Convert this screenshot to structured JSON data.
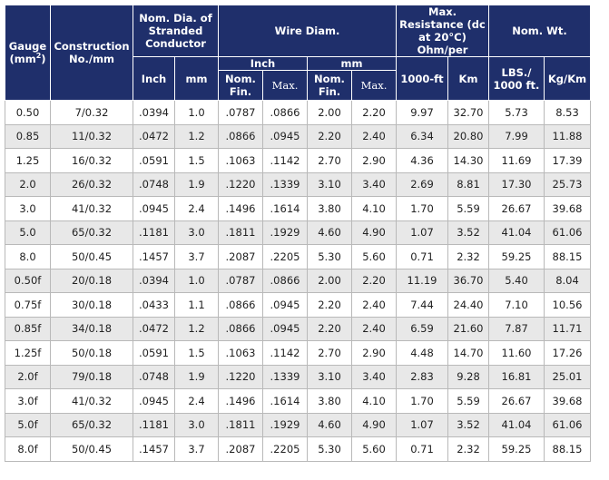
{
  "header": {
    "gauge": "Gauge",
    "gauge_unit_base": "(mm",
    "gauge_unit_sup": "2",
    "gauge_unit_close": ")",
    "construction": "Construction No./mm",
    "nom_dia": "Nom. Dia. of Stranded Conductor",
    "wire_diam": "Wire Diam.",
    "max_resistance": "Max. Resistance (dc at 20°C) Ohm/per",
    "nom_wt": "Nom. Wt.",
    "inch": "Inch",
    "mm": "mm",
    "inch_sub": "Inch",
    "mm_sub": "mm",
    "nom_fin": "Nom. Fin.",
    "max": "Max.",
    "nom_fin_mm": "Nom. Fin.",
    "max_mm": "Max.",
    "ft1000": "1000-ft",
    "km": "Km",
    "lbs": "LBS./ 1000 ft.",
    "kgkm": "Kg/Km"
  },
  "rows": [
    [
      "0.50",
      "7/0.32",
      ".0394",
      "1.0",
      ".0787",
      ".0866",
      "2.00",
      "2.20",
      "9.97",
      "32.70",
      "5.73",
      "8.53"
    ],
    [
      "0.85",
      "11/0.32",
      ".0472",
      "1.2",
      ".0866",
      ".0945",
      "2.20",
      "2.40",
      "6.34",
      "20.80",
      "7.99",
      "11.88"
    ],
    [
      "1.25",
      "16/0.32",
      ".0591",
      "1.5",
      ".1063",
      ".1142",
      "2.70",
      "2.90",
      "4.36",
      "14.30",
      "11.69",
      "17.39"
    ],
    [
      "2.0",
      "26/0.32",
      ".0748",
      "1.9",
      ".1220",
      ".1339",
      "3.10",
      "3.40",
      "2.69",
      "8.81",
      "17.30",
      "25.73"
    ],
    [
      "3.0",
      "41/0.32",
      ".0945",
      "2.4",
      ".1496",
      ".1614",
      "3.80",
      "4.10",
      "1.70",
      "5.59",
      "26.67",
      "39.68"
    ],
    [
      "5.0",
      "65/0.32",
      ".1181",
      "3.0",
      ".1811",
      ".1929",
      "4.60",
      "4.90",
      "1.07",
      "3.52",
      "41.04",
      "61.06"
    ],
    [
      "8.0",
      "50/0.45",
      ".1457",
      "3.7",
      ".2087",
      ".2205",
      "5.30",
      "5.60",
      "0.71",
      "2.32",
      "59.25",
      "88.15"
    ],
    [
      "0.50f",
      "20/0.18",
      ".0394",
      "1.0",
      ".0787",
      ".0866",
      "2.00",
      "2.20",
      "11.19",
      "36.70",
      "5.40",
      "8.04"
    ],
    [
      "0.75f",
      "30/0.18",
      ".0433",
      "1.1",
      ".0866",
      ".0945",
      "2.20",
      "2.40",
      "7.44",
      "24.40",
      "7.10",
      "10.56"
    ],
    [
      "0.85f",
      "34/0.18",
      ".0472",
      "1.2",
      ".0866",
      ".0945",
      "2.20",
      "2.40",
      "6.59",
      "21.60",
      "7.87",
      "11.71"
    ],
    [
      "1.25f",
      "50/0.18",
      ".0591",
      "1.5",
      ".1063",
      ".1142",
      "2.70",
      "2.90",
      "4.48",
      "14.70",
      "11.60",
      "17.26"
    ],
    [
      "2.0f",
      "79/0.18",
      ".0748",
      "1.9",
      ".1220",
      ".1339",
      "3.10",
      "3.40",
      "2.83",
      "9.28",
      "16.81",
      "25.01"
    ],
    [
      "3.0f",
      "41/0.32",
      ".0945",
      "2.4",
      ".1496",
      ".1614",
      "3.80",
      "4.10",
      "1.70",
      "5.59",
      "26.67",
      "39.68"
    ],
    [
      "5.0f",
      "65/0.32",
      ".1181",
      "3.0",
      ".1811",
      ".1929",
      "4.60",
      "4.90",
      "1.07",
      "3.52",
      "41.04",
      "61.06"
    ],
    [
      "8.0f",
      "50/0.45",
      ".1457",
      "3.7",
      ".2087",
      ".2205",
      "5.30",
      "5.60",
      "0.71",
      "2.32",
      "59.25",
      "88.15"
    ]
  ]
}
